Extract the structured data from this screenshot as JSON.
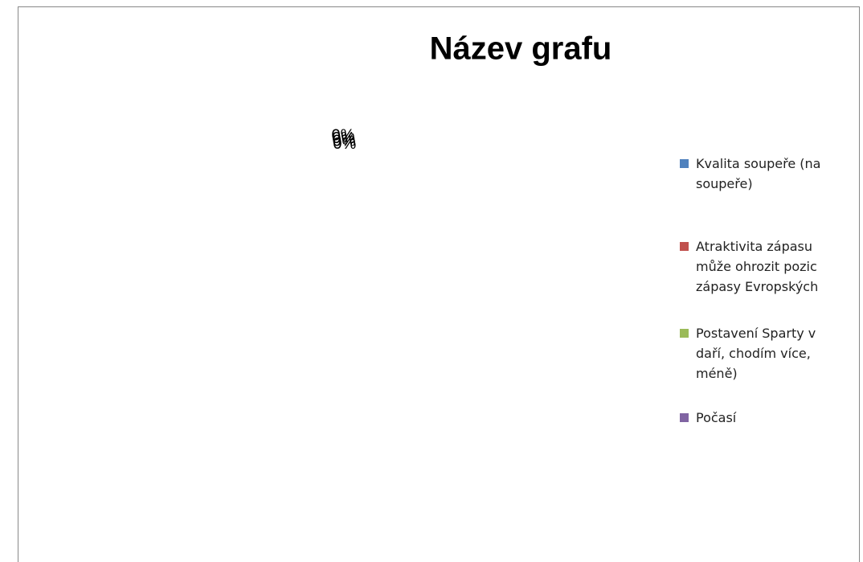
{
  "chart_data": {
    "type": "pie",
    "title": "Název grafu",
    "categories": [
      "Kvalita soupeře (na\nsoupeře)",
      "Atraktivita zápasu\nmůže ohrozit pozic\nzápasy Evropských",
      "Postavení Sparty v\ndaří, chodím více,\nméně)",
      "Počasí"
    ],
    "values": [
      0,
      0,
      0,
      0
    ],
    "value_labels": [
      "0%",
      "0%",
      "0%",
      "0%"
    ],
    "colors": [
      "#4f81bd",
      "#c0504d",
      "#9bbb59",
      "#8064a2"
    ]
  }
}
